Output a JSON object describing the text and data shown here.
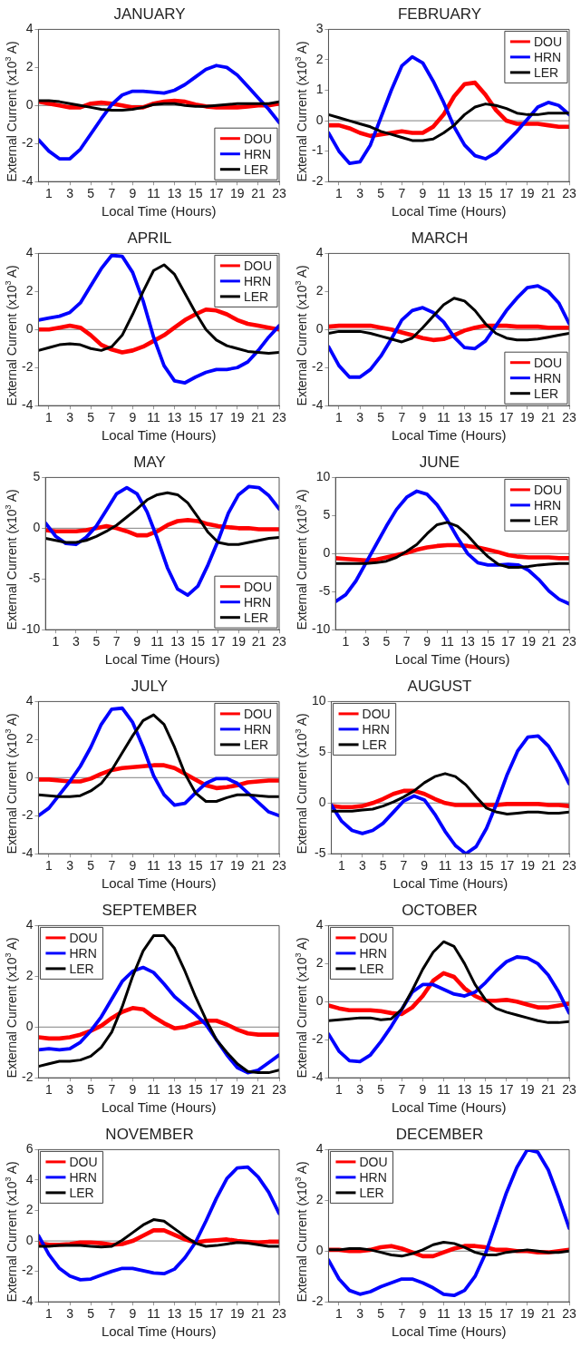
{
  "chart_data": [
    {
      "type": "line",
      "title": "JANUARY",
      "xlabel": "Local Time (Hours)",
      "ylabel": "External Current (x10$^{3}$ A)",
      "x": [
        0,
        1,
        2,
        3,
        4,
        5,
        6,
        7,
        8,
        9,
        10,
        11,
        12,
        13,
        14,
        15,
        16,
        17,
        18,
        19,
        20,
        21,
        22,
        23
      ],
      "xlim": [
        0,
        23
      ],
      "xticks": [
        1,
        3,
        5,
        7,
        9,
        11,
        13,
        15,
        17,
        19,
        21,
        23
      ],
      "ylim": [
        -4,
        4
      ],
      "yticks": [
        -4,
        -2,
        0,
        2,
        4
      ],
      "legend": "bottom right",
      "ref_lines": [
        {
          "axis": "y",
          "value": 0,
          "color": "#808080"
        }
      ],
      "series": [
        {
          "name": "DOU",
          "color": "#ff0000",
          "values": [
            0.2,
            0.1,
            0,
            -0.1,
            -0.1,
            0.1,
            0.15,
            0.1,
            0,
            -0.1,
            -0.1,
            0.1,
            0.2,
            0.25,
            0.2,
            0.05,
            -0.05,
            -0.1,
            -0.1,
            -0.1,
            -0.05,
            0,
            0,
            0.1
          ]
        },
        {
          "name": "HRN",
          "color": "#0000ff",
          "values": [
            -1.8,
            -2.4,
            -2.8,
            -2.8,
            -2.3,
            -1.5,
            -0.7,
            0.05,
            0.55,
            0.75,
            0.75,
            0.7,
            0.65,
            0.8,
            1.1,
            1.5,
            1.9,
            2.1,
            2.0,
            1.6,
            1.0,
            0.4,
            -0.2,
            -0.9
          ]
        },
        {
          "name": "LER",
          "color": "#000000",
          "values": [
            0.25,
            0.25,
            0.2,
            0.1,
            0,
            -0.1,
            -0.2,
            -0.25,
            -0.25,
            -0.2,
            -0.1,
            0.05,
            0.1,
            0.1,
            0,
            -0.05,
            -0.05,
            0,
            0.05,
            0.1,
            0.1,
            0.1,
            0.1,
            0.2
          ]
        }
      ]
    },
    {
      "type": "line",
      "title": "FEBRUARY",
      "xlabel": "Local Time (Hours)",
      "ylabel": "External Current (x10$^{3}$ A)",
      "x": [
        0,
        1,
        2,
        3,
        4,
        5,
        6,
        7,
        8,
        9,
        10,
        11,
        12,
        13,
        14,
        15,
        16,
        17,
        18,
        19,
        20,
        21,
        22,
        23
      ],
      "xlim": [
        0,
        23
      ],
      "xticks": [
        1,
        3,
        5,
        7,
        9,
        11,
        13,
        15,
        17,
        19,
        21,
        23
      ],
      "ylim": [
        -2,
        3
      ],
      "yticks": [
        -2,
        -1,
        0,
        1,
        2,
        3
      ],
      "legend": "top right",
      "ref_lines": [
        {
          "axis": "y",
          "value": 0,
          "color": "#808080"
        }
      ],
      "series": [
        {
          "name": "DOU",
          "color": "#ff0000",
          "values": [
            -0.15,
            -0.15,
            -0.25,
            -0.4,
            -0.5,
            -0.45,
            -0.4,
            -0.35,
            -0.4,
            -0.4,
            -0.2,
            0.2,
            0.8,
            1.2,
            1.25,
            0.85,
            0.35,
            0,
            -0.1,
            -0.1,
            -0.1,
            -0.15,
            -0.2,
            -0.2
          ]
        },
        {
          "name": "HRN",
          "color": "#0000ff",
          "values": [
            -0.4,
            -1.0,
            -1.4,
            -1.35,
            -0.8,
            0.1,
            1.0,
            1.8,
            2.1,
            1.9,
            1.3,
            0.6,
            -0.2,
            -0.8,
            -1.15,
            -1.25,
            -1.05,
            -0.7,
            -0.35,
            0.05,
            0.45,
            0.6,
            0.5,
            0.2
          ]
        },
        {
          "name": "LER",
          "color": "#000000",
          "values": [
            0.2,
            0.1,
            0,
            -0.1,
            -0.2,
            -0.35,
            -0.45,
            -0.55,
            -0.65,
            -0.65,
            -0.6,
            -0.4,
            -0.15,
            0.2,
            0.45,
            0.55,
            0.5,
            0.4,
            0.25,
            0.2,
            0.2,
            0.25,
            0.25,
            0.25
          ]
        }
      ]
    },
    {
      "type": "line",
      "title": "APRIL",
      "xlabel": "Local Time (Hours)",
      "ylabel": "External Current (x10$^{3}$ A)",
      "x": [
        0,
        1,
        2,
        3,
        4,
        5,
        6,
        7,
        8,
        9,
        10,
        11,
        12,
        13,
        14,
        15,
        16,
        17,
        18,
        19,
        20,
        21,
        22,
        23
      ],
      "xlim": [
        0,
        23
      ],
      "xticks": [
        1,
        3,
        5,
        7,
        9,
        11,
        13,
        15,
        17,
        19,
        21,
        23
      ],
      "ylim": [
        -4,
        4
      ],
      "yticks": [
        -4,
        -2,
        0,
        2,
        4
      ],
      "legend": "top right",
      "ref_lines": [
        {
          "axis": "y",
          "value": 0,
          "color": "#808080"
        }
      ],
      "series": [
        {
          "name": "DOU",
          "color": "#ff0000",
          "values": [
            0,
            0,
            0.1,
            0.2,
            0.1,
            -0.3,
            -0.8,
            -1.05,
            -1.2,
            -1.1,
            -0.9,
            -0.6,
            -0.3,
            0.1,
            0.5,
            0.8,
            1.05,
            1.0,
            0.8,
            0.5,
            0.3,
            0.2,
            0.1,
            0
          ]
        },
        {
          "name": "HRN",
          "color": "#0000ff",
          "values": [
            0.5,
            0.6,
            0.7,
            0.9,
            1.4,
            2.3,
            3.2,
            3.9,
            3.85,
            3.0,
            1.5,
            -0.4,
            -1.9,
            -2.7,
            -2.8,
            -2.5,
            -2.25,
            -2.1,
            -2.1,
            -2.0,
            -1.7,
            -1.1,
            -0.4,
            0.2
          ]
        },
        {
          "name": "LER",
          "color": "#000000",
          "values": [
            -1.1,
            -0.95,
            -0.8,
            -0.75,
            -0.8,
            -1.0,
            -1.1,
            -0.9,
            -0.3,
            0.8,
            2.0,
            3.1,
            3.4,
            2.9,
            1.9,
            0.9,
            0,
            -0.55,
            -0.85,
            -1.0,
            -1.15,
            -1.2,
            -1.25,
            -1.2
          ]
        }
      ]
    },
    {
      "type": "line",
      "title": "MARCH",
      "xlabel": "Local Time (Hours)",
      "ylabel": "External Current (x10$^{3}$ A)",
      "x": [
        0,
        1,
        2,
        3,
        4,
        5,
        6,
        7,
        8,
        9,
        10,
        11,
        12,
        13,
        14,
        15,
        16,
        17,
        18,
        19,
        20,
        21,
        22,
        23
      ],
      "xlim": [
        0,
        23
      ],
      "xticks": [
        1,
        3,
        5,
        7,
        9,
        11,
        13,
        15,
        17,
        19,
        21,
        23
      ],
      "ylim": [
        -4,
        4
      ],
      "yticks": [
        -4,
        -2,
        0,
        2,
        4
      ],
      "legend": "bottom right",
      "ref_lines": [
        {
          "axis": "y",
          "value": 0,
          "color": "#808080"
        }
      ],
      "series": [
        {
          "name": "DOU",
          "color": "#ff0000",
          "values": [
            0.15,
            0.2,
            0.2,
            0.2,
            0.2,
            0.1,
            0,
            -0.15,
            -0.3,
            -0.45,
            -0.55,
            -0.5,
            -0.3,
            -0.05,
            0.1,
            0.2,
            0.2,
            0.2,
            0.15,
            0.15,
            0.15,
            0.1,
            0.1,
            0.1
          ]
        },
        {
          "name": "HRN",
          "color": "#0000ff",
          "values": [
            -0.9,
            -1.9,
            -2.5,
            -2.5,
            -2.1,
            -1.4,
            -0.5,
            0.5,
            1.0,
            1.15,
            0.9,
            0.4,
            -0.4,
            -0.95,
            -1.0,
            -0.6,
            0.2,
            1.0,
            1.65,
            2.2,
            2.3,
            2.0,
            1.4,
            0.3
          ]
        },
        {
          "name": "LER",
          "color": "#000000",
          "values": [
            -0.2,
            -0.1,
            -0.1,
            -0.1,
            -0.2,
            -0.35,
            -0.5,
            -0.65,
            -0.45,
            0.1,
            0.7,
            1.3,
            1.65,
            1.5,
            1.0,
            0.3,
            -0.2,
            -0.45,
            -0.55,
            -0.55,
            -0.5,
            -0.4,
            -0.3,
            -0.2
          ]
        }
      ]
    },
    {
      "type": "line",
      "title": "MAY",
      "xlabel": "Local Time (Hours)",
      "ylabel": "External Current (x10$^{3}$ A)",
      "x": [
        0,
        1,
        2,
        3,
        4,
        5,
        6,
        7,
        8,
        9,
        10,
        11,
        12,
        13,
        14,
        15,
        16,
        17,
        18,
        19,
        20,
        21,
        22,
        23
      ],
      "xlim": [
        0,
        23
      ],
      "xticks": [
        1,
        3,
        5,
        7,
        9,
        11,
        13,
        15,
        17,
        19,
        21,
        23
      ],
      "ylim": [
        -10,
        5
      ],
      "yticks": [
        -10,
        -5,
        0,
        5
      ],
      "legend": "bottom right",
      "ref_lines": [
        {
          "axis": "y",
          "value": 0,
          "color": "#808080"
        }
      ],
      "series": [
        {
          "name": "DOU",
          "color": "#ff0000",
          "values": [
            -0.2,
            -0.3,
            -0.3,
            -0.3,
            -0.2,
            0,
            0.2,
            0,
            -0.3,
            -0.7,
            -0.7,
            -0.3,
            0.3,
            0.7,
            0.8,
            0.7,
            0.4,
            0.2,
            0.1,
            0,
            0,
            -0.1,
            -0.1,
            -0.1
          ]
        },
        {
          "name": "HRN",
          "color": "#0000ff",
          "values": [
            0.5,
            -0.8,
            -1.5,
            -1.6,
            -0.9,
            0.2,
            1.8,
            3.4,
            4.0,
            3.4,
            1.6,
            -1.0,
            -3.9,
            -6.0,
            -6.6,
            -5.7,
            -3.6,
            -1.2,
            1.5,
            3.3,
            4.1,
            4.0,
            3.2,
            1.9
          ]
        },
        {
          "name": "LER",
          "color": "#000000",
          "values": [
            -1.0,
            -1.2,
            -1.4,
            -1.4,
            -1.2,
            -0.8,
            -0.3,
            0.3,
            1.1,
            1.9,
            2.8,
            3.3,
            3.5,
            3.3,
            2.5,
            1.1,
            -0.4,
            -1.4,
            -1.6,
            -1.6,
            -1.4,
            -1.2,
            -1.0,
            -0.9
          ]
        }
      ]
    },
    {
      "type": "line",
      "title": "JUNE",
      "xlabel": "Local Time (Hours)",
      "ylabel": "External Current (x10$^{3}$ A)",
      "x": [
        0,
        1,
        2,
        3,
        4,
        5,
        6,
        7,
        8,
        9,
        10,
        11,
        12,
        13,
        14,
        15,
        16,
        17,
        18,
        19,
        20,
        21,
        22,
        23
      ],
      "xlim": [
        0,
        23
      ],
      "xticks": [
        1,
        3,
        5,
        7,
        9,
        11,
        13,
        15,
        17,
        19,
        21,
        23
      ],
      "ylim": [
        -10,
        10
      ],
      "yticks": [
        -10,
        -5,
        0,
        5,
        10
      ],
      "legend": "top right",
      "ref_lines": [
        {
          "axis": "y",
          "value": 0,
          "color": "#808080"
        }
      ],
      "series": [
        {
          "name": "DOU",
          "color": "#ff0000",
          "values": [
            -0.6,
            -0.7,
            -0.8,
            -0.9,
            -0.8,
            -0.5,
            -0.2,
            0.1,
            0.5,
            0.8,
            1.0,
            1.1,
            1.1,
            1.0,
            0.8,
            0.5,
            0.2,
            -0.2,
            -0.4,
            -0.5,
            -0.5,
            -0.5,
            -0.6,
            -0.6
          ]
        },
        {
          "name": "HRN",
          "color": "#0000ff",
          "values": [
            -6.3,
            -5.4,
            -3.6,
            -1.2,
            1.2,
            3.6,
            5.8,
            7.4,
            8.2,
            7.8,
            6.4,
            4.4,
            2.1,
            0,
            -1.2,
            -1.5,
            -1.5,
            -1.4,
            -1.5,
            -2.2,
            -3.4,
            -4.9,
            -6.0,
            -6.6
          ]
        },
        {
          "name": "LER",
          "color": "#000000",
          "values": [
            -1.3,
            -1.3,
            -1.3,
            -1.3,
            -1.2,
            -1.0,
            -0.5,
            0.3,
            1.2,
            2.6,
            3.8,
            4.1,
            3.6,
            2.4,
            0.9,
            -0.4,
            -1.4,
            -1.8,
            -1.8,
            -1.7,
            -1.5,
            -1.4,
            -1.3,
            -1.3
          ]
        }
      ]
    },
    {
      "type": "line",
      "title": "JULY",
      "xlabel": "Local Time (Hours)",
      "ylabel": "External Current (x10$^{3}$ A)",
      "x": [
        0,
        1,
        2,
        3,
        4,
        5,
        6,
        7,
        8,
        9,
        10,
        11,
        12,
        13,
        14,
        15,
        16,
        17,
        18,
        19,
        20,
        21,
        22,
        23
      ],
      "xlim": [
        0,
        23
      ],
      "xticks": [
        1,
        3,
        5,
        7,
        9,
        11,
        13,
        15,
        17,
        19,
        21,
        23
      ],
      "ylim": [
        -4,
        4
      ],
      "yticks": [
        -4,
        -2,
        0,
        2,
        4
      ],
      "legend": "top right",
      "ref_lines": [
        {
          "axis": "y",
          "value": 0,
          "color": "#808080"
        }
      ],
      "series": [
        {
          "name": "DOU",
          "color": "#ff0000",
          "values": [
            -0.1,
            -0.1,
            -0.15,
            -0.2,
            -0.2,
            -0.05,
            0.2,
            0.4,
            0.5,
            0.55,
            0.6,
            0.65,
            0.65,
            0.5,
            0.2,
            -0.1,
            -0.4,
            -0.55,
            -0.5,
            -0.4,
            -0.25,
            -0.2,
            -0.15,
            -0.15
          ]
        },
        {
          "name": "HRN",
          "color": "#0000ff",
          "values": [
            -2.0,
            -1.6,
            -0.9,
            -0.2,
            0.6,
            1.6,
            2.8,
            3.6,
            3.65,
            2.9,
            1.6,
            0.1,
            -0.9,
            -1.45,
            -1.35,
            -0.8,
            -0.3,
            -0.05,
            -0.05,
            -0.3,
            -0.8,
            -1.3,
            -1.8,
            -2.0
          ]
        },
        {
          "name": "LER",
          "color": "#000000",
          "values": [
            -0.9,
            -0.95,
            -1.0,
            -1.0,
            -0.95,
            -0.7,
            -0.3,
            0.4,
            1.3,
            2.2,
            3.0,
            3.3,
            2.8,
            1.6,
            0.2,
            -0.8,
            -1.25,
            -1.25,
            -1.05,
            -0.9,
            -0.9,
            -0.95,
            -1.0,
            -1.0
          ]
        }
      ]
    },
    {
      "type": "line",
      "title": "AUGUST",
      "xlabel": "Local Time (Hours)",
      "ylabel": "External Current (x10$^{3}$ A)",
      "x": [
        0,
        1,
        2,
        3,
        4,
        5,
        6,
        7,
        8,
        9,
        10,
        11,
        12,
        13,
        14,
        15,
        16,
        17,
        18,
        19,
        20,
        21,
        22,
        23
      ],
      "xlim": [
        0,
        23
      ],
      "xticks": [
        1,
        3,
        5,
        7,
        9,
        11,
        13,
        15,
        17,
        19,
        21,
        23
      ],
      "ylim": [
        -5,
        10
      ],
      "yticks": [
        -5,
        0,
        5,
        10
      ],
      "legend": "top left",
      "ref_lines": [
        {
          "axis": "y",
          "value": 0,
          "color": "#808080"
        }
      ],
      "series": [
        {
          "name": "DOU",
          "color": "#ff0000",
          "values": [
            -0.3,
            -0.4,
            -0.4,
            -0.3,
            0,
            0.4,
            0.9,
            1.2,
            1.2,
            0.9,
            0.4,
            0,
            -0.2,
            -0.2,
            -0.2,
            -0.2,
            -0.2,
            -0.1,
            -0.1,
            -0.1,
            -0.1,
            -0.2,
            -0.2,
            -0.3
          ]
        },
        {
          "name": "HRN",
          "color": "#0000ff",
          "values": [
            -0.2,
            -1.8,
            -2.7,
            -3.0,
            -2.7,
            -2.0,
            -0.9,
            0.2,
            0.7,
            0.3,
            -1.1,
            -2.8,
            -4.2,
            -5.0,
            -4.3,
            -2.5,
            0,
            2.8,
            5.1,
            6.5,
            6.6,
            5.6,
            3.9,
            1.9
          ]
        },
        {
          "name": "LER",
          "color": "#000000",
          "values": [
            -0.8,
            -0.8,
            -0.8,
            -0.7,
            -0.6,
            -0.3,
            0.1,
            0.6,
            1.2,
            2.0,
            2.6,
            2.9,
            2.6,
            1.8,
            0.6,
            -0.5,
            -0.9,
            -1.1,
            -1.0,
            -0.9,
            -0.9,
            -1.0,
            -1.0,
            -0.9
          ]
        }
      ]
    },
    {
      "type": "line",
      "title": "SEPTEMBER",
      "xlabel": "Local Time (Hours)",
      "ylabel": "External Current (x10$^{3}$ A)",
      "x": [
        0,
        1,
        2,
        3,
        4,
        5,
        6,
        7,
        8,
        9,
        10,
        11,
        12,
        13,
        14,
        15,
        16,
        17,
        18,
        19,
        20,
        21,
        22,
        23
      ],
      "xlim": [
        0,
        23
      ],
      "xticks": [
        1,
        3,
        5,
        7,
        9,
        11,
        13,
        15,
        17,
        19,
        21,
        23
      ],
      "ylim": [
        -2,
        4
      ],
      "yticks": [
        -2,
        0,
        2,
        4
      ],
      "legend": "top left",
      "ref_lines": [
        {
          "axis": "y",
          "value": 0,
          "color": "#808080"
        }
      ],
      "series": [
        {
          "name": "DOU",
          "color": "#ff0000",
          "values": [
            -0.4,
            -0.45,
            -0.45,
            -0.4,
            -0.3,
            -0.15,
            0.05,
            0.35,
            0.6,
            0.75,
            0.7,
            0.4,
            0.15,
            -0.05,
            0,
            0.15,
            0.25,
            0.25,
            0.1,
            -0.1,
            -0.25,
            -0.3,
            -0.3,
            -0.3
          ]
        },
        {
          "name": "HRN",
          "color": "#0000ff",
          "values": [
            -0.9,
            -0.85,
            -0.9,
            -0.85,
            -0.6,
            -0.15,
            0.4,
            1.1,
            1.8,
            2.2,
            2.35,
            2.15,
            1.7,
            1.2,
            0.85,
            0.5,
            0.1,
            -0.5,
            -1.1,
            -1.6,
            -1.8,
            -1.7,
            -1.4,
            -1.1
          ]
        },
        {
          "name": "LER",
          "color": "#000000",
          "values": [
            -1.55,
            -1.45,
            -1.35,
            -1.35,
            -1.3,
            -1.15,
            -0.8,
            -0.2,
            0.8,
            2.0,
            3.0,
            3.6,
            3.6,
            3.1,
            2.2,
            1.2,
            0.3,
            -0.5,
            -1.0,
            -1.45,
            -1.75,
            -1.8,
            -1.8,
            -1.7
          ]
        }
      ]
    },
    {
      "type": "line",
      "title": "OCTOBER",
      "xlabel": "Local Time (Hours)",
      "ylabel": "External Current (x10$^{3}$ A)",
      "x": [
        0,
        1,
        2,
        3,
        4,
        5,
        6,
        7,
        8,
        9,
        10,
        11,
        12,
        13,
        14,
        15,
        16,
        17,
        18,
        19,
        20,
        21,
        22,
        23
      ],
      "xlim": [
        0,
        23
      ],
      "xticks": [
        1,
        3,
        5,
        7,
        9,
        11,
        13,
        15,
        17,
        19,
        21,
        23
      ],
      "ylim": [
        -4,
        4
      ],
      "yticks": [
        -4,
        -2,
        0,
        2,
        4
      ],
      "legend": "top left",
      "ref_lines": [
        {
          "axis": "y",
          "value": 0,
          "color": "#808080"
        }
      ],
      "series": [
        {
          "name": "DOU",
          "color": "#ff0000",
          "values": [
            -0.2,
            -0.35,
            -0.45,
            -0.45,
            -0.45,
            -0.5,
            -0.6,
            -0.65,
            -0.3,
            0.3,
            1.1,
            1.5,
            1.3,
            0.7,
            0.3,
            0.05,
            0.05,
            0.1,
            0,
            -0.15,
            -0.3,
            -0.3,
            -0.2,
            -0.1
          ]
        },
        {
          "name": "HRN",
          "color": "#0000ff",
          "values": [
            -1.7,
            -2.6,
            -3.1,
            -3.15,
            -2.8,
            -2.1,
            -1.3,
            -0.4,
            0.5,
            0.9,
            0.9,
            0.65,
            0.4,
            0.3,
            0.5,
            1.0,
            1.6,
            2.1,
            2.35,
            2.3,
            2.0,
            1.4,
            0.5,
            -0.6
          ]
        },
        {
          "name": "LER",
          "color": "#000000",
          "values": [
            -1.0,
            -0.95,
            -0.9,
            -0.85,
            -0.85,
            -0.95,
            -0.9,
            -0.4,
            0.6,
            1.7,
            2.6,
            3.15,
            2.9,
            2.0,
            0.9,
            0.1,
            -0.35,
            -0.55,
            -0.7,
            -0.85,
            -1.0,
            -1.1,
            -1.1,
            -1.05
          ]
        }
      ]
    },
    {
      "type": "line",
      "title": "NOVEMBER",
      "xlabel": "Local Time (Hours)",
      "ylabel": "External Current (x10$^{3}$ A)",
      "x": [
        0,
        1,
        2,
        3,
        4,
        5,
        6,
        7,
        8,
        9,
        10,
        11,
        12,
        13,
        14,
        15,
        16,
        17,
        18,
        19,
        20,
        21,
        22,
        23
      ],
      "xlim": [
        0,
        23
      ],
      "xticks": [
        1,
        3,
        5,
        7,
        9,
        11,
        13,
        15,
        17,
        19,
        21,
        23
      ],
      "ylim": [
        -4,
        6
      ],
      "yticks": [
        -4,
        -2,
        0,
        2,
        4,
        6
      ],
      "legend": "top left",
      "ref_lines": [
        {
          "axis": "y",
          "value": 0,
          "color": "#808080"
        }
      ],
      "series": [
        {
          "name": "DOU",
          "color": "#ff0000",
          "values": [
            -0.15,
            -0.25,
            -0.25,
            -0.2,
            -0.1,
            -0.1,
            -0.15,
            -0.25,
            -0.2,
            0,
            0.35,
            0.7,
            0.7,
            0.4,
            0.1,
            -0.1,
            0,
            0.05,
            0.1,
            0,
            -0.05,
            -0.1,
            -0.05,
            -0.05
          ]
        },
        {
          "name": "HRN",
          "color": "#0000ff",
          "values": [
            0.35,
            -0.9,
            -1.8,
            -2.3,
            -2.55,
            -2.5,
            -2.25,
            -2.0,
            -1.8,
            -1.8,
            -1.95,
            -2.1,
            -2.15,
            -1.85,
            -1.1,
            -0.1,
            1.3,
            2.8,
            4.1,
            4.8,
            4.85,
            4.2,
            3.2,
            1.8
          ]
        },
        {
          "name": "LER",
          "color": "#000000",
          "values": [
            -0.35,
            -0.35,
            -0.3,
            -0.3,
            -0.3,
            -0.35,
            -0.4,
            -0.35,
            0.05,
            0.55,
            1.05,
            1.4,
            1.3,
            0.8,
            0.3,
            -0.15,
            -0.35,
            -0.3,
            -0.2,
            -0.1,
            -0.15,
            -0.25,
            -0.35,
            -0.35
          ]
        }
      ]
    },
    {
      "type": "line",
      "title": "DECEMBER",
      "xlabel": "Local Time (Hours)",
      "ylabel": "External Current (x10$^{3}$ A)",
      "x": [
        0,
        1,
        2,
        3,
        4,
        5,
        6,
        7,
        8,
        9,
        10,
        11,
        12,
        13,
        14,
        15,
        16,
        17,
        18,
        19,
        20,
        21,
        22,
        23
      ],
      "xlim": [
        0,
        23
      ],
      "xticks": [
        1,
        3,
        5,
        7,
        9,
        11,
        13,
        15,
        17,
        19,
        21,
        23
      ],
      "ylim": [
        -2,
        4
      ],
      "yticks": [
        -2,
        0,
        2,
        4
      ],
      "legend": "top left",
      "ref_lines": [
        {
          "axis": "y",
          "value": 0,
          "color": "#808080"
        }
      ],
      "series": [
        {
          "name": "DOU",
          "color": "#ff0000",
          "values": [
            0.05,
            0.05,
            0,
            0,
            0.05,
            0.15,
            0.2,
            0.1,
            -0.05,
            -0.2,
            -0.2,
            -0.05,
            0.1,
            0.2,
            0.2,
            0.15,
            0.05,
            0.05,
            0,
            0,
            -0.05,
            -0.05,
            0,
            0.05
          ]
        },
        {
          "name": "HRN",
          "color": "#0000ff",
          "values": [
            -0.35,
            -1.1,
            -1.55,
            -1.7,
            -1.6,
            -1.4,
            -1.25,
            -1.1,
            -1.1,
            -1.25,
            -1.45,
            -1.7,
            -1.75,
            -1.55,
            -1.0,
            -0.1,
            1.1,
            2.3,
            3.3,
            4.0,
            3.9,
            3.2,
            2.1,
            0.9
          ]
        },
        {
          "name": "LER",
          "color": "#000000",
          "values": [
            0.05,
            0.05,
            0.1,
            0.1,
            0.05,
            -0.05,
            -0.15,
            -0.2,
            -0.1,
            0.05,
            0.25,
            0.35,
            0.3,
            0.15,
            -0.05,
            -0.15,
            -0.15,
            -0.05,
            0,
            0.05,
            0,
            -0.05,
            -0.05,
            0
          ]
        }
      ]
    }
  ]
}
